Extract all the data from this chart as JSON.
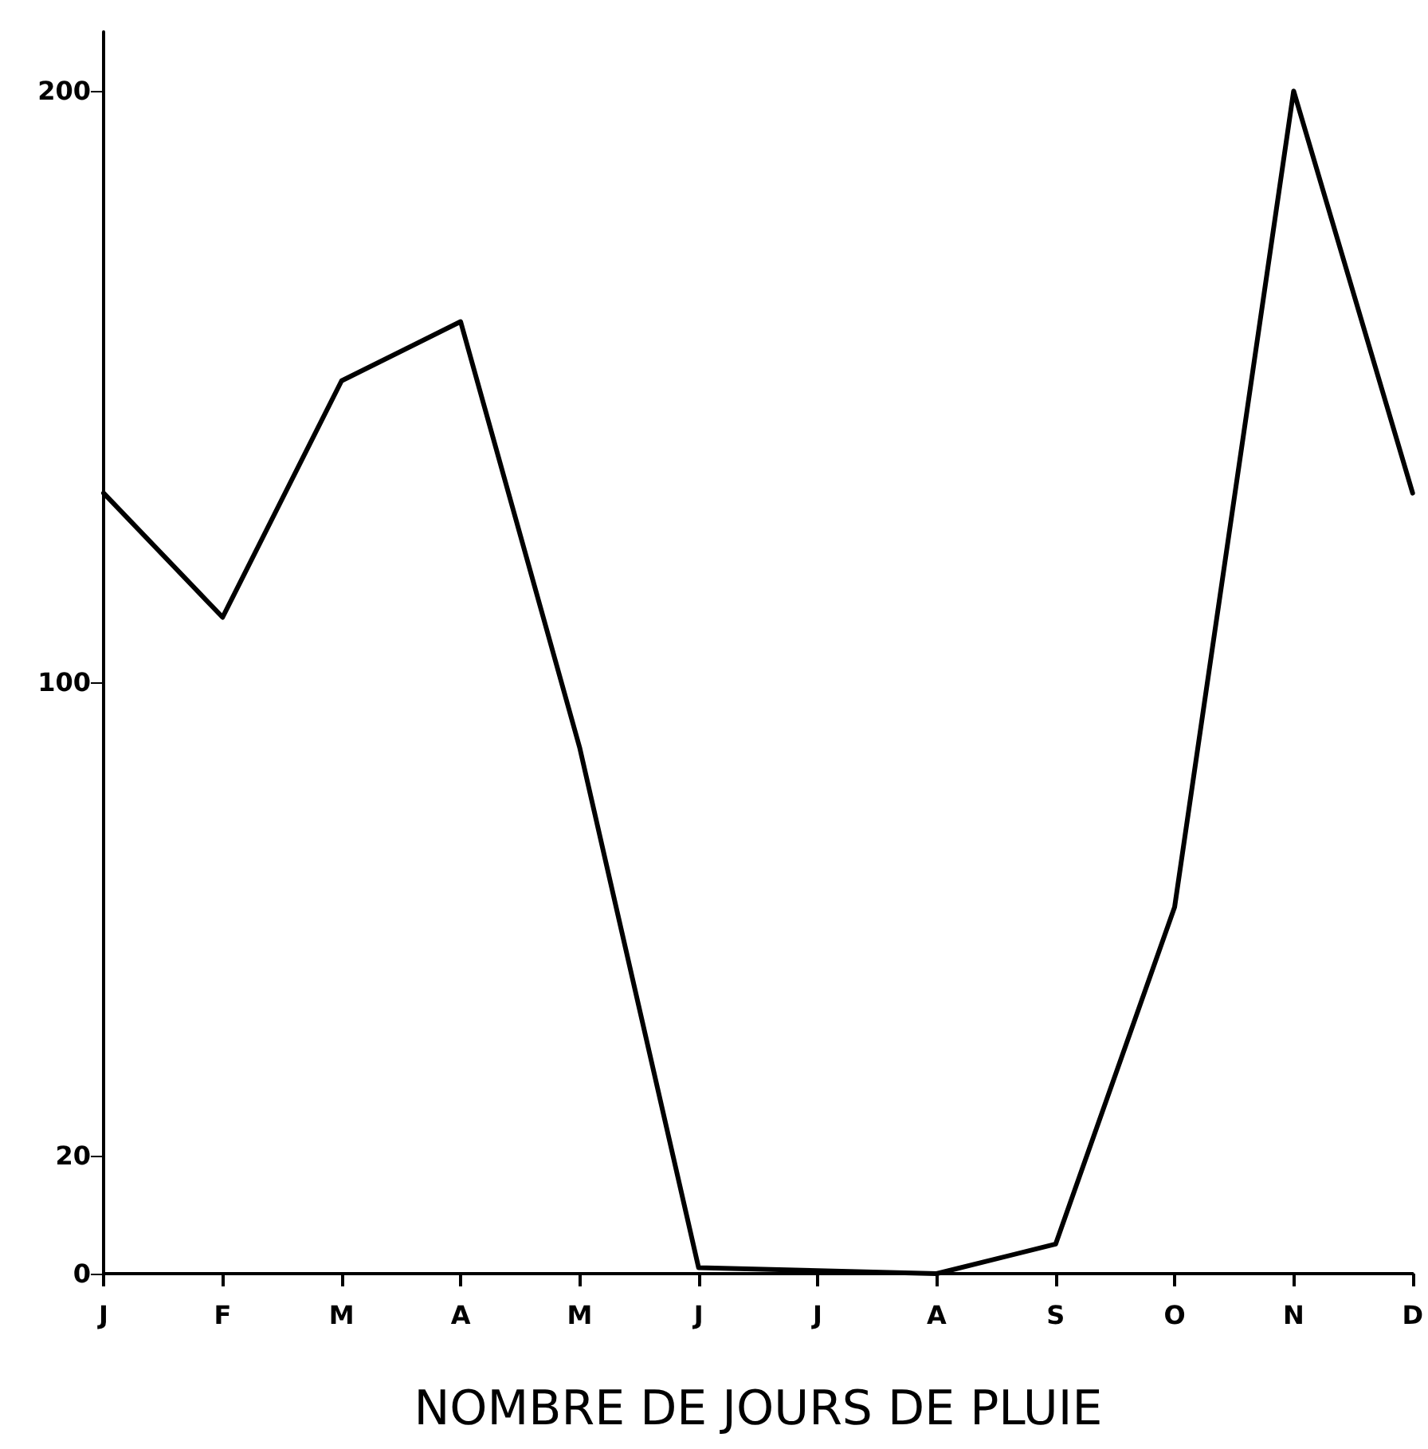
{
  "chart_data": {
    "type": "line",
    "xlabel": "NOMBRE DE JOURS DE PLUIE",
    "categories": [
      "J",
      "F",
      "M",
      "A",
      "M",
      "J",
      "J",
      "A",
      "S",
      "O",
      "N",
      "D"
    ],
    "series": [
      {
        "color": "#000000",
        "values": [
          132,
          111,
          151,
          161,
          89,
          1,
          0.5,
          0,
          5,
          62,
          200,
          132
        ]
      }
    ],
    "ylim": [
      0,
      210
    ],
    "yticks": [
      0,
      20,
      100,
      200
    ],
    "marker": "none",
    "line_style": "solid"
  }
}
